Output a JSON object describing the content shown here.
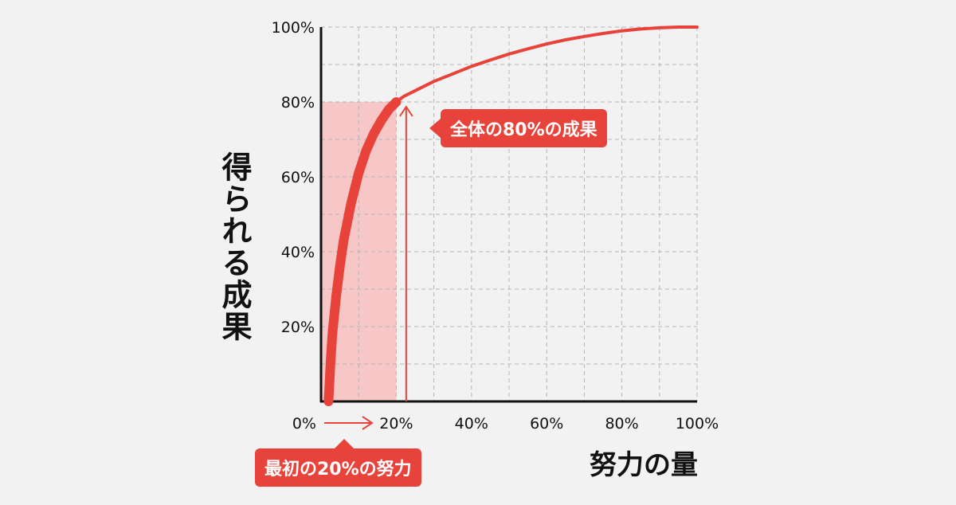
{
  "chart_data": {
    "type": "line",
    "xlabel": "努力の量",
    "ylabel": "得られる成果",
    "x_ticks": [
      "0%",
      "20%",
      "40%",
      "60%",
      "80%",
      "100%"
    ],
    "y_ticks": [
      "20%",
      "40%",
      "60%",
      "80%",
      "100%"
    ],
    "xlim": [
      0,
      100
    ],
    "ylim": [
      0,
      100
    ],
    "grid": true,
    "series": [
      {
        "x": [
          2,
          2.5,
          3,
          4,
          5,
          6,
          8,
          10,
          12,
          14,
          16,
          18,
          20,
          22,
          25,
          30,
          35,
          40,
          45,
          50,
          55,
          60,
          65,
          70,
          75,
          80,
          85,
          90,
          95,
          98,
          100
        ],
        "values": [
          0,
          10,
          18,
          28,
          36,
          43,
          53,
          61,
          67,
          71.5,
          75,
          78,
          80,
          81.5,
          83,
          85.5,
          87.5,
          89.5,
          91.2,
          92.8,
          94.2,
          95.5,
          96.6,
          97.5,
          98.3,
          99,
          99.5,
          99.8,
          100,
          100,
          100
        ],
        "color": "#e8433a"
      }
    ],
    "highlight": {
      "x_range": [
        0,
        20
      ],
      "y_range": [
        0,
        80
      ],
      "color": "#f7c6c6"
    },
    "annotations": [
      {
        "text": "全体の80%の成果",
        "target_x": 22,
        "target_y": 80
      },
      {
        "text": "最初の20%の努力",
        "target_x": 20,
        "target_y": 0
      }
    ]
  }
}
